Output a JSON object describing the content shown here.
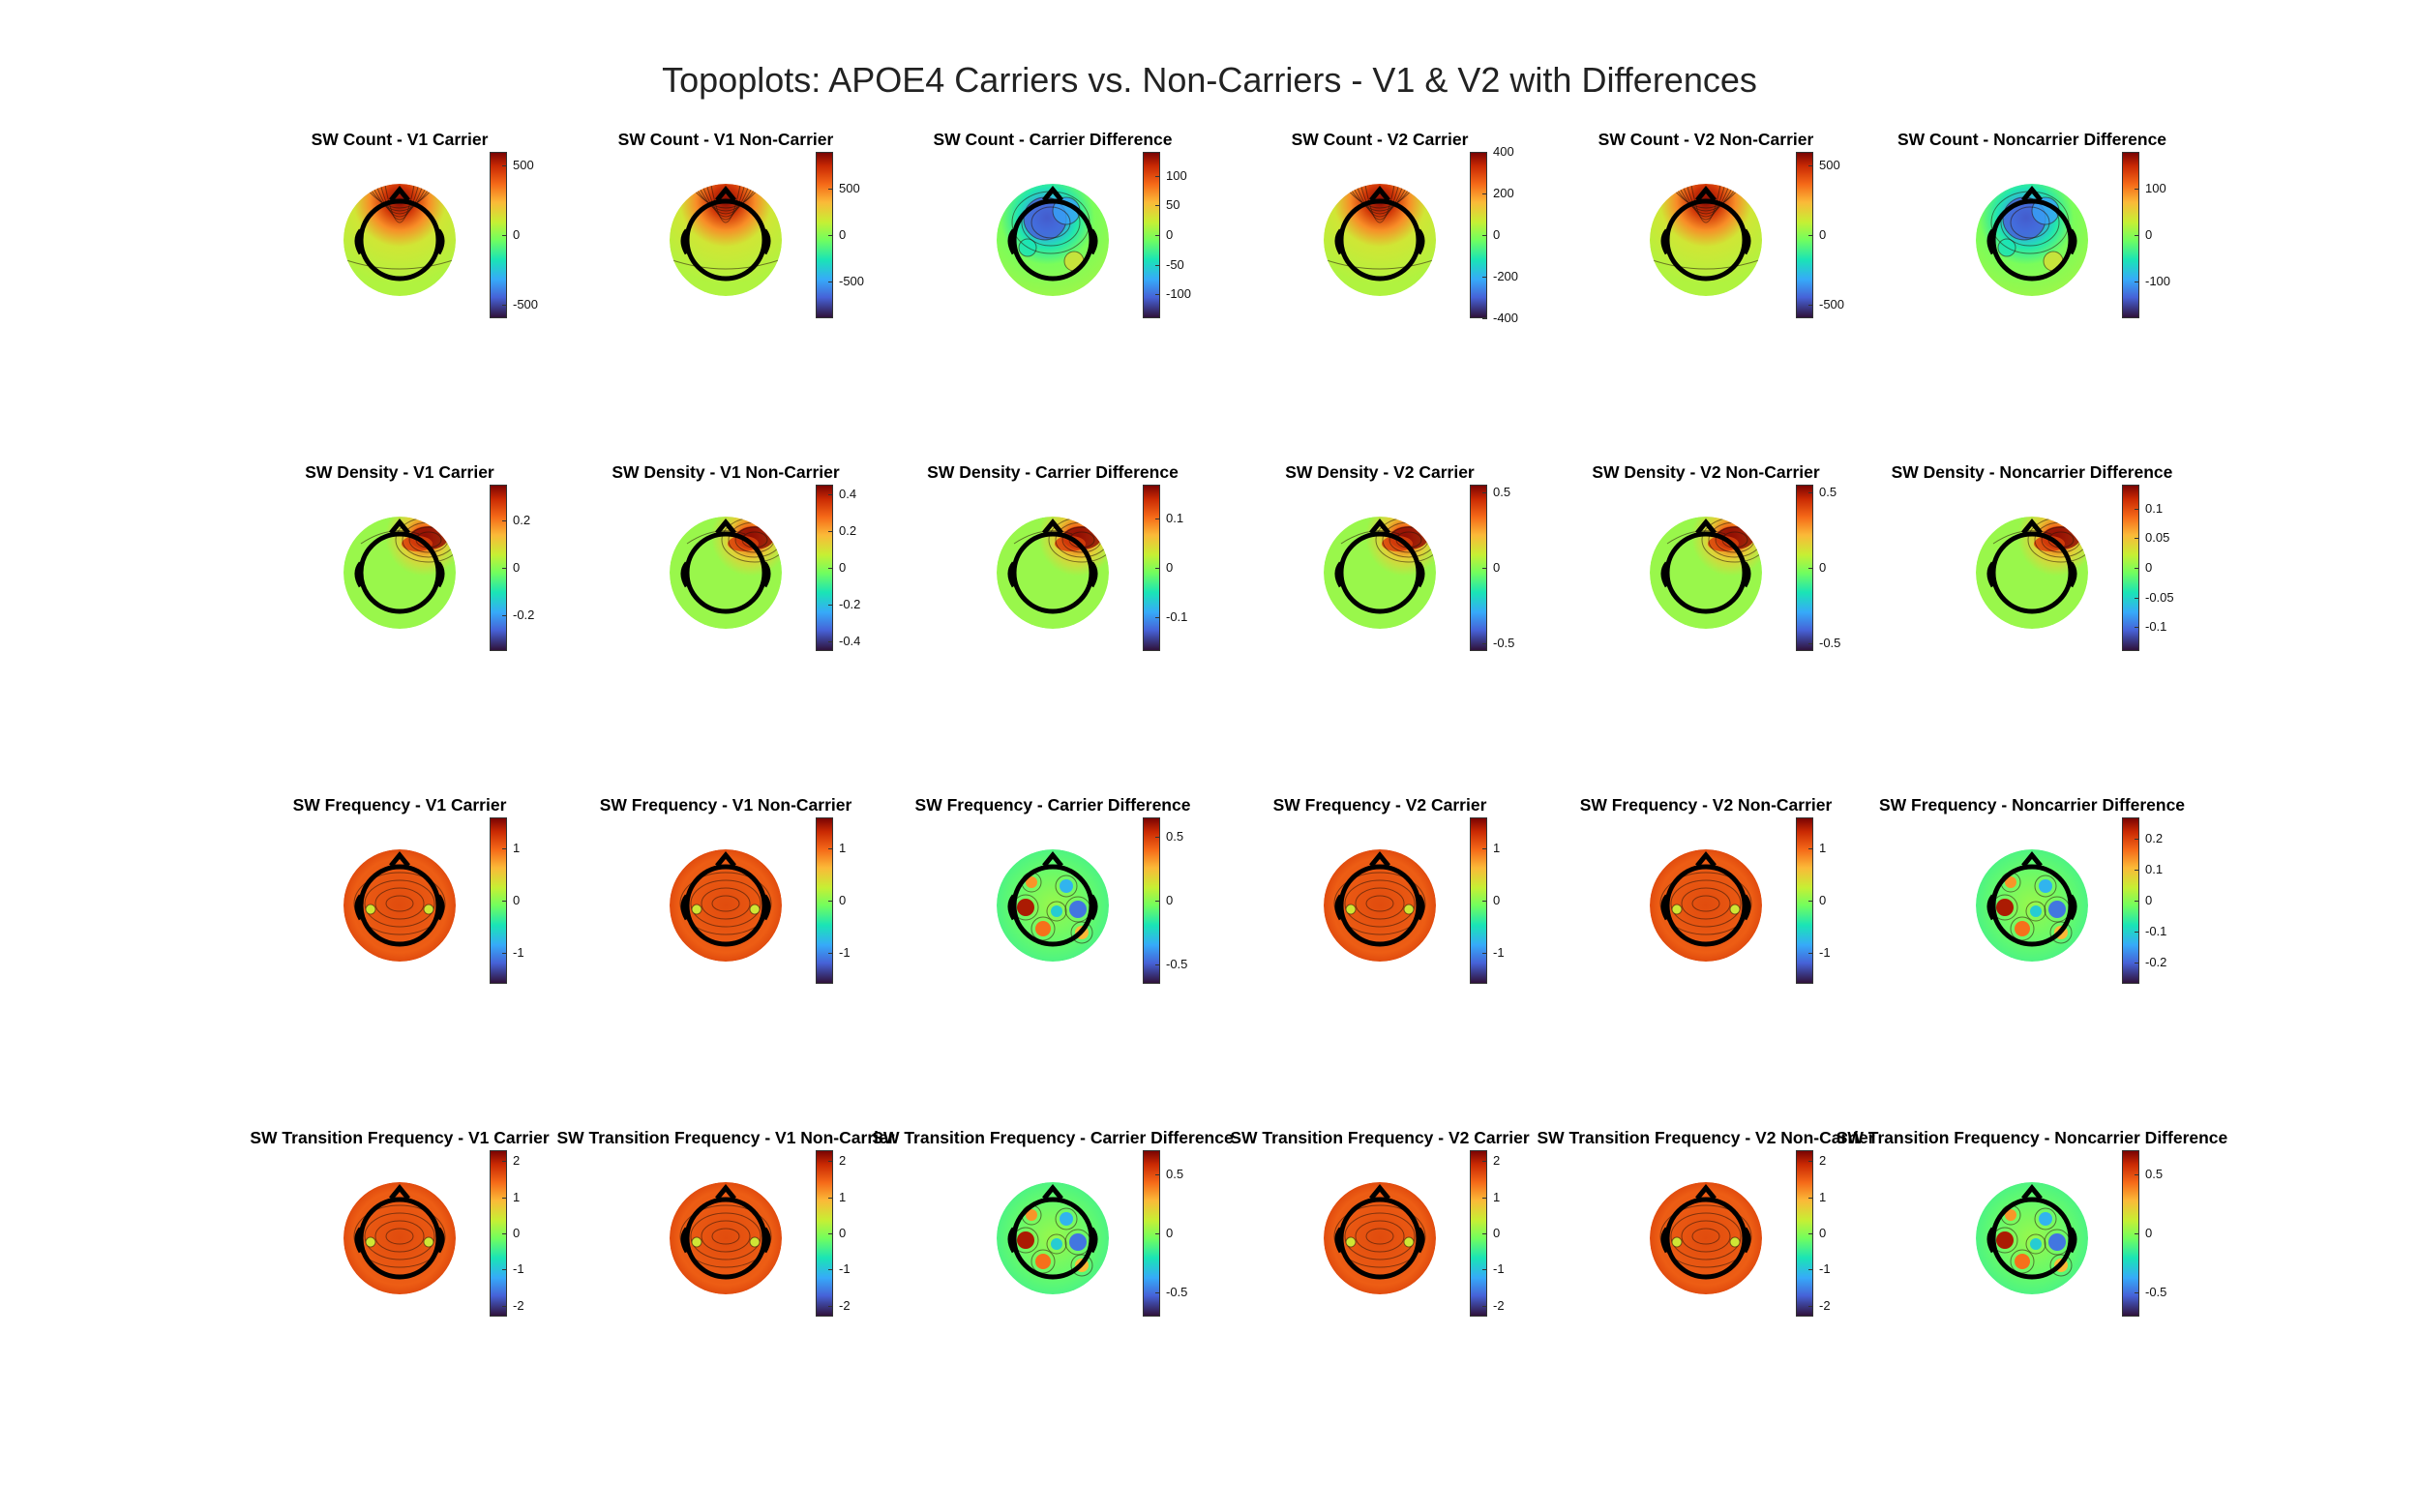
{
  "figure": {
    "title": "Topoplots: APOE4 Carriers vs. Non-Carriers - V1 & V2 with Differences"
  },
  "colormap": "turbo",
  "chart_data": {
    "type": "heatmap",
    "layout": {
      "rows": 4,
      "cols": 6
    },
    "panels": [
      {
        "title": "SW Count - V1 Carrier",
        "clim": [
          -600,
          600
        ],
        "ticks": [
          500,
          0,
          -500
        ],
        "dominant": "front-hot"
      },
      {
        "title": "SW Count - V1 Non-Carrier",
        "clim": [
          -900,
          900
        ],
        "ticks": [
          500,
          0,
          -500
        ],
        "dominant": "front-hot"
      },
      {
        "title": "SW Count - Carrier Difference",
        "clim": [
          -140,
          140
        ],
        "ticks": [
          100,
          50,
          0,
          -50,
          -100
        ],
        "dominant": "front-cold"
      },
      {
        "title": "SW Count - V2 Carrier",
        "clim": [
          -400,
          400
        ],
        "ticks": [
          400,
          200,
          0,
          -200,
          -400
        ],
        "dominant": "front-hot"
      },
      {
        "title": "SW Count - V2 Non-Carrier",
        "clim": [
          -600,
          600
        ],
        "ticks": [
          500,
          0,
          -500
        ],
        "dominant": "front-hot"
      },
      {
        "title": "SW Count - Noncarrier Difference",
        "clim": [
          -180,
          180
        ],
        "ticks": [
          100,
          0,
          -100
        ],
        "dominant": "front-cold"
      },
      {
        "title": "SW Density - V1 Carrier",
        "clim": [
          -0.35,
          0.35
        ],
        "ticks": [
          0.2,
          0,
          -0.2
        ],
        "dominant": "right-front-hot"
      },
      {
        "title": "SW Density - V1 Non-Carrier",
        "clim": [
          -0.45,
          0.45
        ],
        "ticks": [
          0.4,
          0.2,
          0,
          -0.2,
          -0.4
        ],
        "dominant": "right-front-hot"
      },
      {
        "title": "SW Density - Carrier Difference",
        "clim": [
          -0.17,
          0.17
        ],
        "ticks": [
          0.1,
          0,
          -0.1
        ],
        "dominant": "right-front-hot"
      },
      {
        "title": "SW Density - V2 Carrier",
        "clim": [
          -0.55,
          0.55
        ],
        "ticks": [
          0.5,
          0,
          -0.5
        ],
        "dominant": "right-front-hot"
      },
      {
        "title": "SW Density - V2 Non-Carrier",
        "clim": [
          -0.55,
          0.55
        ],
        "ticks": [
          0.5,
          0,
          -0.5
        ],
        "dominant": "right-front-hot"
      },
      {
        "title": "SW Density - Noncarrier Difference",
        "clim": [
          -0.14,
          0.14
        ],
        "ticks": [
          0.1,
          0.05,
          0,
          -0.05,
          -0.1
        ],
        "dominant": "right-front-hot"
      },
      {
        "title": "SW Frequency - V1 Carrier",
        "clim": [
          -1.6,
          1.6
        ],
        "ticks": [
          1,
          0,
          -1
        ],
        "dominant": "uniform-hot"
      },
      {
        "title": "SW Frequency - V1 Non-Carrier",
        "clim": [
          -1.6,
          1.6
        ],
        "ticks": [
          1,
          0,
          -1
        ],
        "dominant": "uniform-hot"
      },
      {
        "title": "SW Frequency - Carrier Difference",
        "clim": [
          -0.65,
          0.65
        ],
        "ticks": [
          0.5,
          0,
          -0.5
        ],
        "dominant": "mixed"
      },
      {
        "title": "SW Frequency - V2 Carrier",
        "clim": [
          -1.6,
          1.6
        ],
        "ticks": [
          1,
          0,
          -1
        ],
        "dominant": "uniform-hot"
      },
      {
        "title": "SW Frequency - V2 Non-Carrier",
        "clim": [
          -1.6,
          1.6
        ],
        "ticks": [
          1,
          0,
          -1
        ],
        "dominant": "uniform-hot"
      },
      {
        "title": "SW Frequency - Noncarrier Difference",
        "clim": [
          -0.27,
          0.27
        ],
        "ticks": [
          0.2,
          0.1,
          0,
          -0.1,
          -0.2
        ],
        "dominant": "mixed"
      },
      {
        "title": "SW Transition Frequency - V1 Carrier",
        "clim": [
          -2.3,
          2.3
        ],
        "ticks": [
          2,
          1,
          0,
          -1,
          -2
        ],
        "dominant": "uniform-hot"
      },
      {
        "title": "SW Transition Frequency - V1 Non-Carrier",
        "clim": [
          -2.3,
          2.3
        ],
        "ticks": [
          2,
          1,
          0,
          -1,
          -2
        ],
        "dominant": "uniform-hot"
      },
      {
        "title": "SW Transition Frequency - Carrier Difference",
        "clim": [
          -0.7,
          0.7
        ],
        "ticks": [
          0.5,
          0,
          -0.5
        ],
        "dominant": "mixed"
      },
      {
        "title": "SW Transition Frequency - V2 Carrier",
        "clim": [
          -2.3,
          2.3
        ],
        "ticks": [
          2,
          1,
          0,
          -1,
          -2
        ],
        "dominant": "uniform-hot"
      },
      {
        "title": "SW Transition Frequency - V2 Non-Carrier",
        "clim": [
          -2.3,
          2.3
        ],
        "ticks": [
          2,
          1,
          0,
          -1,
          -2
        ],
        "dominant": "uniform-hot"
      },
      {
        "title": "SW Transition Frequency - Noncarrier Difference",
        "clim": [
          -0.7,
          0.7
        ],
        "ticks": [
          0.5,
          0,
          -0.5
        ],
        "dominant": "mixed"
      }
    ]
  }
}
